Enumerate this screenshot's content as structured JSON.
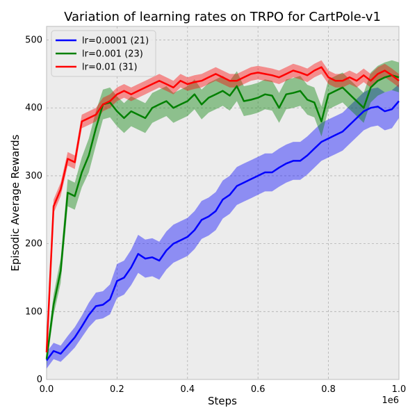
{
  "chart_data": {
    "type": "line",
    "title": "Variation of learning rates on TRPO for CartPole-v1",
    "xlabel": "Steps",
    "ylabel": "Episodic Average Rewards",
    "x_offset_label": "1e6",
    "xlim": [
      0,
      1.0
    ],
    "ylim": [
      0,
      520
    ],
    "xticks": [
      0.0,
      0.2,
      0.4,
      0.6,
      0.8,
      1.0
    ],
    "xtick_labels": [
      "0.0",
      "0.2",
      "0.4",
      "0.6",
      "0.8",
      "1.0"
    ],
    "yticks": [
      0,
      100,
      200,
      300,
      400,
      500
    ],
    "ytick_labels": [
      "0",
      "100",
      "200",
      "300",
      "400",
      "500"
    ],
    "grid": true,
    "legend_position": "top-left",
    "plot_background": "#ececec",
    "series": [
      {
        "name": "lr=0.0001 (21)",
        "color": "#0000ff",
        "x": [
          0.0,
          0.02,
          0.04,
          0.06,
          0.08,
          0.1,
          0.12,
          0.14,
          0.16,
          0.18,
          0.2,
          0.22,
          0.24,
          0.26,
          0.28,
          0.3,
          0.32,
          0.34,
          0.36,
          0.38,
          0.4,
          0.42,
          0.44,
          0.46,
          0.48,
          0.5,
          0.52,
          0.54,
          0.56,
          0.58,
          0.6,
          0.62,
          0.64,
          0.66,
          0.68,
          0.7,
          0.72,
          0.74,
          0.76,
          0.78,
          0.8,
          0.82,
          0.84,
          0.86,
          0.88,
          0.9,
          0.92,
          0.94,
          0.96,
          0.98,
          1.0
        ],
        "y": [
          28,
          42,
          38,
          50,
          62,
          78,
          95,
          108,
          110,
          118,
          145,
          150,
          165,
          185,
          178,
          180,
          175,
          190,
          200,
          205,
          210,
          220,
          235,
          240,
          248,
          265,
          272,
          285,
          290,
          295,
          300,
          305,
          305,
          312,
          318,
          322,
          322,
          330,
          340,
          350,
          355,
          360,
          365,
          375,
          385,
          395,
          400,
          402,
          395,
          398,
          410
        ],
        "band": [
          12,
          12,
          12,
          14,
          15,
          16,
          18,
          20,
          20,
          22,
          25,
          25,
          26,
          28,
          28,
          28,
          28,
          28,
          28,
          28,
          28,
          28,
          28,
          28,
          28,
          28,
          28,
          28,
          28,
          28,
          28,
          28,
          28,
          28,
          28,
          28,
          28,
          28,
          28,
          28,
          28,
          28,
          28,
          28,
          28,
          28,
          28,
          28,
          28,
          28,
          25
        ]
      },
      {
        "name": "lr=0.001 (23)",
        "color": "#008000",
        "x": [
          0.0,
          0.02,
          0.04,
          0.06,
          0.08,
          0.1,
          0.12,
          0.14,
          0.16,
          0.18,
          0.2,
          0.22,
          0.24,
          0.26,
          0.28,
          0.3,
          0.32,
          0.34,
          0.36,
          0.38,
          0.4,
          0.42,
          0.44,
          0.46,
          0.48,
          0.5,
          0.52,
          0.54,
          0.56,
          0.58,
          0.6,
          0.62,
          0.64,
          0.66,
          0.68,
          0.7,
          0.72,
          0.74,
          0.76,
          0.78,
          0.8,
          0.82,
          0.84,
          0.86,
          0.88,
          0.9,
          0.92,
          0.94,
          0.96,
          0.98,
          1.0
        ],
        "y": [
          30,
          110,
          160,
          275,
          270,
          305,
          330,
          370,
          405,
          408,
          395,
          385,
          395,
          390,
          385,
          400,
          405,
          410,
          400,
          405,
          410,
          420,
          405,
          415,
          420,
          425,
          418,
          432,
          410,
          412,
          415,
          420,
          418,
          400,
          420,
          422,
          425,
          412,
          408,
          380,
          420,
          425,
          430,
          420,
          410,
          400,
          430,
          440,
          445,
          448,
          445
        ],
        "band": [
          10,
          15,
          18,
          20,
          20,
          22,
          25,
          25,
          22,
          22,
          22,
          22,
          22,
          22,
          22,
          22,
          22,
          22,
          22,
          22,
          22,
          22,
          22,
          22,
          22,
          22,
          22,
          22,
          22,
          22,
          22,
          22,
          22,
          22,
          22,
          22,
          22,
          22,
          22,
          22,
          22,
          22,
          22,
          22,
          22,
          22,
          22,
          22,
          22,
          22,
          22
        ]
      },
      {
        "name": "lr=0.01 (31)",
        "color": "#ff0000",
        "x": [
          0.0,
          0.02,
          0.04,
          0.06,
          0.08,
          0.1,
          0.12,
          0.14,
          0.16,
          0.18,
          0.2,
          0.22,
          0.24,
          0.26,
          0.28,
          0.3,
          0.32,
          0.34,
          0.36,
          0.38,
          0.4,
          0.42,
          0.44,
          0.46,
          0.48,
          0.5,
          0.52,
          0.54,
          0.56,
          0.58,
          0.6,
          0.62,
          0.64,
          0.66,
          0.68,
          0.7,
          0.72,
          0.74,
          0.76,
          0.78,
          0.8,
          0.82,
          0.84,
          0.86,
          0.88,
          0.9,
          0.92,
          0.94,
          0.96,
          0.98,
          1.0
        ],
        "y": [
          40,
          255,
          280,
          325,
          320,
          380,
          385,
          390,
          405,
          410,
          420,
          425,
          420,
          425,
          430,
          435,
          440,
          435,
          430,
          440,
          435,
          438,
          440,
          445,
          450,
          445,
          440,
          440,
          445,
          450,
          452,
          450,
          448,
          445,
          450,
          455,
          452,
          448,
          455,
          460,
          445,
          440,
          440,
          445,
          440,
          448,
          440,
          450,
          455,
          448,
          440
        ],
        "band": [
          8,
          10,
          10,
          10,
          10,
          10,
          10,
          10,
          10,
          10,
          10,
          10,
          10,
          10,
          10,
          10,
          10,
          10,
          10,
          10,
          10,
          10,
          10,
          10,
          10,
          10,
          10,
          10,
          10,
          10,
          10,
          10,
          10,
          10,
          10,
          10,
          10,
          10,
          10,
          10,
          10,
          10,
          10,
          10,
          10,
          10,
          10,
          10,
          10,
          10,
          10
        ]
      }
    ]
  }
}
